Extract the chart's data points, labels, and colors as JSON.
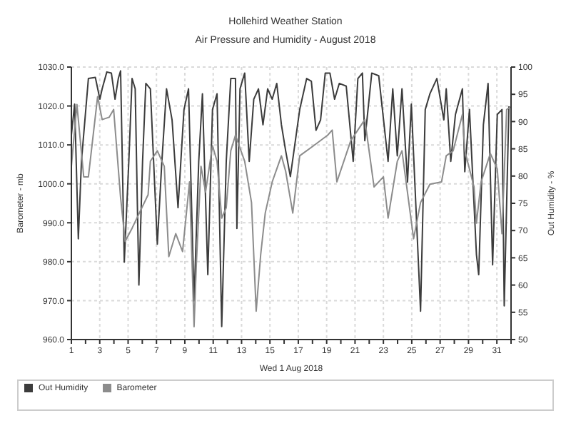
{
  "chart_data": {
    "type": "line",
    "title": "Hollehird Weather Station",
    "subtitle": "Air Pressure and Humidity - August 2018",
    "xlabel": "Wed 1 Aug 2018",
    "ylabel": "Barometer - mb",
    "y2label": "Out Humidity - %",
    "xlim": [
      1,
      32
    ],
    "xticks": [
      1,
      {
        "value": 2,
        "label": null
      },
      3,
      {
        "value": 4,
        "label": null
      },
      5,
      {
        "value": 6,
        "label": null
      },
      7,
      {
        "value": 8,
        "label": null
      },
      9,
      {
        "value": 10,
        "label": null
      },
      11,
      {
        "value": 12,
        "label": null
      },
      13,
      {
        "value": 14,
        "label": null
      },
      15,
      {
        "value": 16,
        "label": null
      },
      17,
      {
        "value": 18,
        "label": null
      },
      19,
      {
        "value": 20,
        "label": null
      },
      21,
      {
        "value": 22,
        "label": null
      },
      23,
      {
        "value": 24,
        "label": null
      },
      25,
      {
        "value": 26,
        "label": null
      },
      27,
      {
        "value": 28,
        "label": null
      },
      29,
      {
        "value": 30,
        "label": null
      },
      31,
      {
        "value": 32,
        "label": null
      }
    ],
    "ylim": [
      960,
      1030
    ],
    "yticks": [
      {
        "value": 960,
        "label": "960.0"
      },
      {
        "value": 970,
        "label": "970.0"
      },
      {
        "value": 980,
        "label": "980.0"
      },
      {
        "value": 990,
        "label": "990.0"
      },
      {
        "value": 1000,
        "label": "1000.0"
      },
      {
        "value": 1010,
        "label": "1010.0"
      },
      {
        "value": 1020,
        "label": "1020.0"
      },
      {
        "value": 1030,
        "label": "1030.0"
      }
    ],
    "y2lim": [
      50,
      100
    ],
    "y2ticks": [
      50,
      55,
      60,
      65,
      70,
      75,
      80,
      85,
      90,
      95,
      100
    ],
    "grid": true,
    "legend": "bottom",
    "line_style": "solid",
    "series": [
      {
        "name": "Out Humidity",
        "color": "#3c3c3c",
        "axis": "y2",
        "x": [
          1.0,
          1.23,
          1.49,
          1.71,
          2.2,
          2.69,
          3.01,
          3.17,
          3.5,
          3.82,
          4.08,
          4.31,
          4.47,
          4.73,
          5.05,
          5.28,
          5.5,
          5.76,
          6.02,
          6.25,
          6.57,
          7.06,
          7.38,
          7.71,
          8.1,
          8.52,
          8.94,
          9.26,
          9.65,
          9.98,
          10.24,
          10.62,
          10.95,
          11.27,
          11.6,
          11.92,
          12.24,
          12.57,
          12.67,
          12.89,
          13.22,
          13.54,
          13.86,
          14.19,
          14.51,
          14.84,
          15.16,
          15.48,
          15.81,
          16.11,
          16.44,
          17.1,
          17.59,
          17.92,
          18.25,
          18.57,
          18.9,
          19.23,
          19.56,
          19.89,
          20.38,
          20.87,
          21.2,
          21.52,
          21.69,
          22.18,
          22.67,
          23.33,
          23.66,
          23.98,
          24.31,
          24.7,
          24.97,
          25.62,
          25.95,
          26.28,
          26.77,
          27.26,
          27.43,
          27.75,
          28.08,
          28.57,
          28.74,
          29.07,
          29.56,
          29.72,
          30.05,
          30.38,
          30.7,
          31.03,
          31.36,
          31.52,
          31.85
        ],
        "values": [
          87.5,
          93.2,
          68.5,
          82.7,
          97.9,
          98.1,
          94.1,
          96,
          99.1,
          98.9,
          94.1,
          97.9,
          99.3,
          64.2,
          82.7,
          97.9,
          96,
          60,
          82.7,
          97,
          96,
          67.5,
          82.7,
          96,
          90.3,
          74.2,
          92.2,
          96,
          57.1,
          82.7,
          95.1,
          61.9,
          92.2,
          95.1,
          52.4,
          82.7,
          97.9,
          97.9,
          70.4,
          96,
          98.9,
          82.7,
          94.1,
          96,
          89.4,
          96,
          94.1,
          97,
          89.4,
          84.6,
          79.9,
          92.2,
          97.9,
          97.4,
          88.4,
          90.3,
          98.9,
          98.9,
          94.1,
          97,
          96.5,
          82.7,
          97.9,
          98.9,
          86.5,
          98.9,
          98.4,
          82.7,
          96,
          83.7,
          96,
          78.9,
          93.2,
          55.2,
          92.2,
          95.1,
          97.9,
          90.3,
          96,
          82.7,
          91.3,
          96,
          80.8,
          92.2,
          65.6,
          61.9,
          89.4,
          97,
          63.7,
          91.3,
          92.2,
          56.2,
          92.7
        ]
      },
      {
        "name": "Barometer",
        "color": "#8c8c8c",
        "x": [
          1.0,
          1.39,
          1.87,
          2.2,
          2.85,
          3.17,
          3.66,
          3.98,
          4.47,
          4.79,
          5.28,
          6.41,
          6.57,
          7.06,
          7.55,
          7.87,
          8.36,
          8.84,
          9.33,
          9.65,
          9.81,
          10.14,
          10.46,
          10.95,
          11.27,
          11.6,
          11.92,
          12.24,
          12.57,
          13.22,
          13.7,
          14.03,
          14.35,
          14.67,
          15.16,
          15.81,
          16.11,
          16.61,
          17.1,
          18.08,
          19.07,
          19.39,
          19.72,
          20.7,
          21.69,
          22.34,
          23.0,
          23.33,
          23.98,
          24.31,
          25.13,
          25.62,
          26.28,
          27.1,
          27.43,
          27.92,
          28.57,
          28.74,
          29.39,
          29.56,
          29.89,
          30.54,
          31.03,
          31.36,
          31.69,
          32.0
        ],
        "values": [
          1004.5,
          1020.4,
          1001.8,
          1001.8,
          1022.4,
          1016.5,
          1017.1,
          1019.1,
          996.5,
          985.2,
          988.6,
          997.2,
          1005.8,
          1008.5,
          1004.5,
          981.3,
          987.2,
          982.6,
          1000.5,
          963.3,
          979.3,
          1004.5,
          997.9,
          1009.8,
          1005.8,
          991.2,
          993.9,
          1008.5,
          1012.5,
          1005.8,
          995.2,
          967.3,
          981.9,
          992.5,
          1000.5,
          1007.2,
          1003.2,
          992.5,
          1007.2,
          1009.8,
          1012.5,
          1013.8,
          1000.5,
          1011.1,
          1016.5,
          999.2,
          1001.8,
          991.2,
          1005.8,
          1008.5,
          985.9,
          995.2,
          999.9,
          1000.5,
          1007.2,
          1008.5,
          1017.8,
          1008.5,
          999.2,
          989.9,
          1000.5,
          1007.8,
          1003.8,
          987.2,
          1019.1,
          1019.8
        ]
      }
    ]
  }
}
